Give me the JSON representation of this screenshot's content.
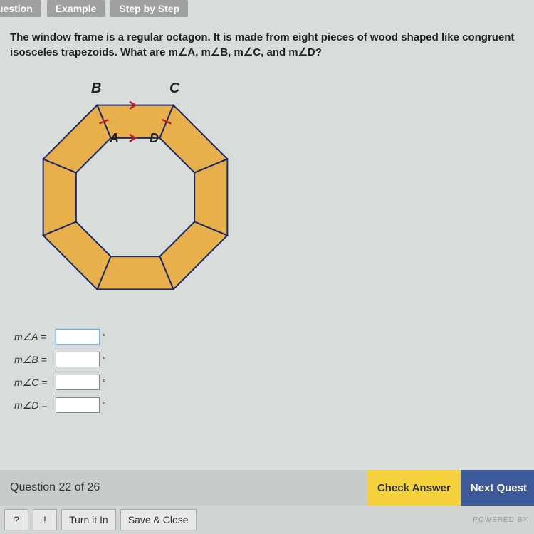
{
  "tabs": {
    "question": "uestion",
    "example": "Example",
    "steps": "Step by Step"
  },
  "question_text": "The window frame is a regular octagon. It is made from eight pieces of wood shaped like congruent isosceles trapezoids. What are m∠A, m∠B, m∠C, and m∠D?",
  "diagram": {
    "labels": {
      "A": "A",
      "B": "B",
      "C": "C",
      "D": "D"
    },
    "fill_color": "#e8b04a",
    "stroke_color": "#1a2a6b",
    "tick_color": "#c02020",
    "stroke_width": 2
  },
  "answers": {
    "A": {
      "label": "m∠A =",
      "value": ""
    },
    "B": {
      "label": "m∠B =",
      "value": ""
    },
    "C": {
      "label": "m∠C =",
      "value": ""
    },
    "D": {
      "label": "m∠D =",
      "value": ""
    }
  },
  "footer": {
    "counter": "Question 22 of 26",
    "check": "Check Answer",
    "next": "Next Quest",
    "help": "?",
    "report": "!",
    "turnin": "Turn it In",
    "save": "Save & Close",
    "powered": "POWERED BY"
  }
}
